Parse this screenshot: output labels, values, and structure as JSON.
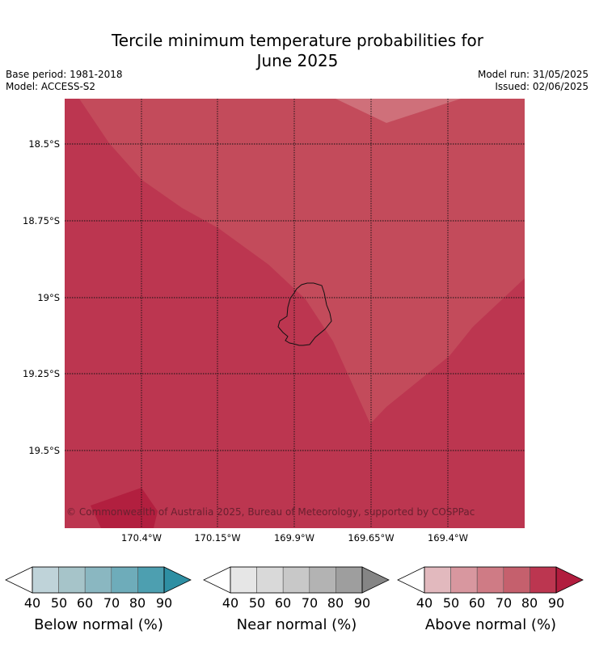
{
  "title_line1": "Tercile minimum temperature probabilities for",
  "title_line2": "June 2025",
  "base_period": "Base period: 1981-2018",
  "model": "Model: ACCESS-S2",
  "model_run": "Model run: 31/05/2025",
  "issued": "Issued: 02/06/2025",
  "lat_labels": [
    "18.5°S",
    "18.75°S",
    "19°S",
    "19.25°S",
    "19.5°S"
  ],
  "lon_labels": [
    "170.4°W",
    "170.15°W",
    "169.9°W",
    "169.65°W",
    "169.4°W"
  ],
  "copyright": "© Commonwealth of Australia 2025, Bureau of Meteorology, supported by COSPPac",
  "colorbars": [
    {
      "label": "Below normal (%)",
      "ticks": [
        "40",
        "50",
        "60",
        "70",
        "80",
        "90"
      ],
      "colors": [
        "#ffffff",
        "#bfd3d9",
        "#a6c4c9",
        "#8ab7c1",
        "#6eacba",
        "#4d9fb0",
        "#2e8fa3"
      ]
    },
    {
      "label": "Near normal (%)",
      "ticks": [
        "40",
        "50",
        "60",
        "70",
        "80",
        "90"
      ],
      "colors": [
        "#ffffff",
        "#e6e6e6",
        "#d9d9d9",
        "#c8c8c8",
        "#b3b3b3",
        "#9e9e9e",
        "#858585"
      ]
    },
    {
      "label": "Above normal (%)",
      "ticks": [
        "40",
        "50",
        "60",
        "70",
        "80",
        "90"
      ],
      "colors": [
        "#ffffff",
        "#e2b9be",
        "#d8979f",
        "#cf7b85",
        "#c5606d",
        "#bc3650",
        "#b11d3e"
      ]
    }
  ],
  "map_colors": {
    "base": "#bc3650",
    "lighter": "#c34b5b",
    "lightest": "#cf707a",
    "darker": "#b21f3f"
  }
}
